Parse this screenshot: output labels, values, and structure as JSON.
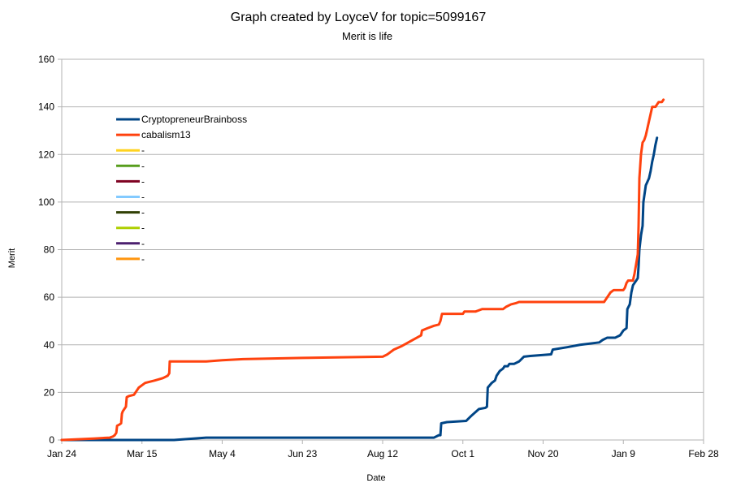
{
  "chart_data": {
    "type": "line",
    "title": "Graph created by LoyceV for topic=5099167",
    "subtitle": "Merit is life",
    "xlabel": "Date",
    "ylabel": "Merit",
    "x_tick_labels": [
      "Jan 24",
      "Mar 15",
      "May 4",
      "Jun 23",
      "Aug 12",
      "Oct 1",
      "Nov 20",
      "Jan 9",
      "Feb 28"
    ],
    "x_tick_days": [
      0,
      50,
      100,
      150,
      200,
      250,
      300,
      350,
      400
    ],
    "xlim_days": [
      0,
      400
    ],
    "y_ticks": [
      0,
      20,
      40,
      60,
      80,
      100,
      120,
      140,
      160
    ],
    "ylim": [
      0,
      160
    ],
    "grid": true,
    "legend_position": "top-left inside plot",
    "series": [
      {
        "name": "CryptopreneurBrainboss",
        "color": "#004586",
        "points": [
          [
            0,
            0
          ],
          [
            35,
            0
          ],
          [
            60,
            0
          ],
          [
            70,
            0
          ],
          [
            90,
            1
          ],
          [
            110,
            1
          ],
          [
            150,
            1
          ],
          [
            200,
            1
          ],
          [
            232,
            1
          ],
          [
            235,
            2
          ],
          [
            236,
            2
          ],
          [
            236.5,
            7
          ],
          [
            240,
            7.5
          ],
          [
            252,
            8
          ],
          [
            255,
            10
          ],
          [
            260,
            13
          ],
          [
            264,
            13.5
          ],
          [
            265,
            14
          ],
          [
            265.5,
            22
          ],
          [
            268,
            24
          ],
          [
            270,
            25
          ],
          [
            271,
            27
          ],
          [
            273,
            29
          ],
          [
            275,
            30
          ],
          [
            276,
            31
          ],
          [
            278,
            31
          ],
          [
            279,
            32
          ],
          [
            282,
            32
          ],
          [
            285,
            33
          ],
          [
            288,
            35
          ],
          [
            292,
            35.3
          ],
          [
            305,
            36
          ],
          [
            306,
            38
          ],
          [
            315,
            39
          ],
          [
            323,
            40
          ],
          [
            335,
            41
          ],
          [
            337,
            42
          ],
          [
            340,
            43
          ],
          [
            345,
            43
          ],
          [
            348,
            44
          ],
          [
            350,
            46
          ],
          [
            352,
            47
          ],
          [
            352.5,
            55
          ],
          [
            354,
            57
          ],
          [
            355,
            62
          ],
          [
            356,
            65
          ],
          [
            357,
            66
          ],
          [
            358,
            67
          ],
          [
            359,
            68
          ],
          [
            359.5,
            73
          ],
          [
            360,
            80
          ],
          [
            361,
            86
          ],
          [
            361.5,
            88
          ],
          [
            362,
            90
          ],
          [
            362.5,
            100
          ],
          [
            364,
            107
          ],
          [
            366,
            110
          ],
          [
            367,
            113
          ],
          [
            368,
            117
          ],
          [
            369,
            120
          ],
          [
            370,
            124
          ],
          [
            371,
            127
          ]
        ]
      },
      {
        "name": "cabalism13",
        "color": "#ff420e",
        "points": [
          [
            0,
            0
          ],
          [
            10,
            0.3
          ],
          [
            20,
            0.6
          ],
          [
            30,
            1
          ],
          [
            32,
            1.5
          ],
          [
            33,
            2
          ],
          [
            34,
            3
          ],
          [
            34.5,
            6
          ],
          [
            36,
            6.5
          ],
          [
            37,
            7
          ],
          [
            37.5,
            11
          ],
          [
            38,
            12
          ],
          [
            39,
            13
          ],
          [
            40,
            14
          ],
          [
            40.5,
            18
          ],
          [
            42,
            18.5
          ],
          [
            45,
            19
          ],
          [
            46,
            20
          ],
          [
            47,
            21
          ],
          [
            48,
            22
          ],
          [
            50,
            23
          ],
          [
            52,
            24
          ],
          [
            55,
            24.5
          ],
          [
            58,
            25
          ],
          [
            63,
            26
          ],
          [
            66,
            27
          ],
          [
            67,
            28
          ],
          [
            67.3,
            33
          ],
          [
            70,
            33
          ],
          [
            80,
            33
          ],
          [
            90,
            33
          ],
          [
            100,
            33.5
          ],
          [
            113,
            34
          ],
          [
            150,
            34.5
          ],
          [
            200,
            35
          ],
          [
            203,
            36
          ],
          [
            207,
            38
          ],
          [
            212,
            39.5
          ],
          [
            216,
            41
          ],
          [
            220,
            42.5
          ],
          [
            224,
            44
          ],
          [
            224.5,
            46
          ],
          [
            228,
            47
          ],
          [
            232,
            48
          ],
          [
            235,
            48.5
          ],
          [
            236,
            50
          ],
          [
            237,
            53
          ],
          [
            245,
            53
          ],
          [
            250,
            53
          ],
          [
            251,
            54
          ],
          [
            258,
            54
          ],
          [
            262,
            55
          ],
          [
            270,
            55
          ],
          [
            275,
            55
          ],
          [
            277,
            56
          ],
          [
            280,
            57
          ],
          [
            283,
            57.5
          ],
          [
            285,
            58
          ],
          [
            300,
            58
          ],
          [
            320,
            58
          ],
          [
            338,
            58
          ],
          [
            340,
            60
          ],
          [
            342,
            62
          ],
          [
            344,
            63
          ],
          [
            350,
            63
          ],
          [
            351,
            64
          ],
          [
            352,
            66
          ],
          [
            353,
            67
          ],
          [
            356,
            67
          ],
          [
            357,
            70
          ],
          [
            358,
            74
          ],
          [
            358.5,
            76
          ],
          [
            359,
            78
          ],
          [
            359.5,
            90
          ],
          [
            360,
            110
          ],
          [
            361,
            120
          ],
          [
            362,
            125
          ],
          [
            363,
            126
          ],
          [
            364,
            128
          ],
          [
            365,
            131
          ],
          [
            366,
            134
          ],
          [
            367,
            137
          ],
          [
            368,
            140
          ],
          [
            370,
            140
          ],
          [
            371,
            141
          ],
          [
            372,
            142
          ],
          [
            374,
            142
          ],
          [
            375,
            143
          ]
        ]
      },
      {
        "name": "-",
        "color": "#ffd320",
        "points": []
      },
      {
        "name": "-",
        "color": "#579d1c",
        "points": []
      },
      {
        "name": "-",
        "color": "#7e0021",
        "points": []
      },
      {
        "name": "-",
        "color": "#83caff",
        "points": []
      },
      {
        "name": "-",
        "color": "#314004",
        "points": []
      },
      {
        "name": "-",
        "color": "#aecf00",
        "points": []
      },
      {
        "name": "-",
        "color": "#4b1f6f",
        "points": []
      },
      {
        "name": "-",
        "color": "#ff950e",
        "points": []
      }
    ]
  }
}
